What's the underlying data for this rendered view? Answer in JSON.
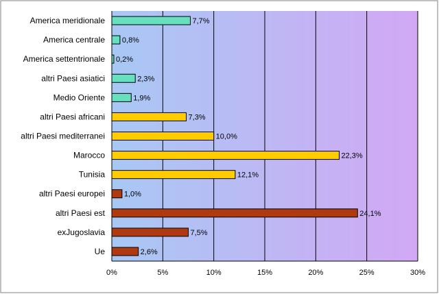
{
  "chart_data": {
    "type": "bar",
    "orientation": "horizontal",
    "categories": [
      "America meridionale",
      "America centrale",
      "America settentrionale",
      "altri Paesi asiatici",
      "Medio Oriente",
      "altri Paesi africani",
      "altri Paesi mediterranei",
      "Marocco",
      "Tunisia",
      "altri Paesi europei",
      "altri Paesi est",
      "exJugoslavia",
      "Ue"
    ],
    "values": [
      7.7,
      0.8,
      0.2,
      2.3,
      1.9,
      7.3,
      10.0,
      22.3,
      12.1,
      1.0,
      24.1,
      7.5,
      2.6
    ],
    "value_labels": [
      "7,7%",
      "0,8%",
      "0,2%",
      "2,3%",
      "1,9%",
      "7,3%",
      "10,0%",
      "22,3%",
      "12,1%",
      "1,0%",
      "24,1%",
      "7,5%",
      "2,6%"
    ],
    "group_colors": [
      "#66e0bf",
      "#66e0bf",
      "#66e0bf",
      "#66e0bf",
      "#66e0bf",
      "#ffcc00",
      "#ffcc00",
      "#ffcc00",
      "#ffcc00",
      "#b03a10",
      "#b03a10",
      "#b03a10",
      "#b03a10"
    ],
    "x_ticks": [
      0,
      5,
      10,
      15,
      20,
      25,
      30
    ],
    "x_tick_labels": [
      "0%",
      "5%",
      "10%",
      "15%",
      "20%",
      "25%",
      "30%"
    ],
    "xlim": [
      0,
      30
    ],
    "grid": true,
    "legend": "none",
    "title": "",
    "xlabel": "",
    "ylabel": ""
  },
  "colors": {
    "plot_gradient_left": "#a8c8f4",
    "plot_gradient_right": "#d2a8f4",
    "gridline": "#000000",
    "bar_border": "#000000",
    "frame": "#808080"
  }
}
